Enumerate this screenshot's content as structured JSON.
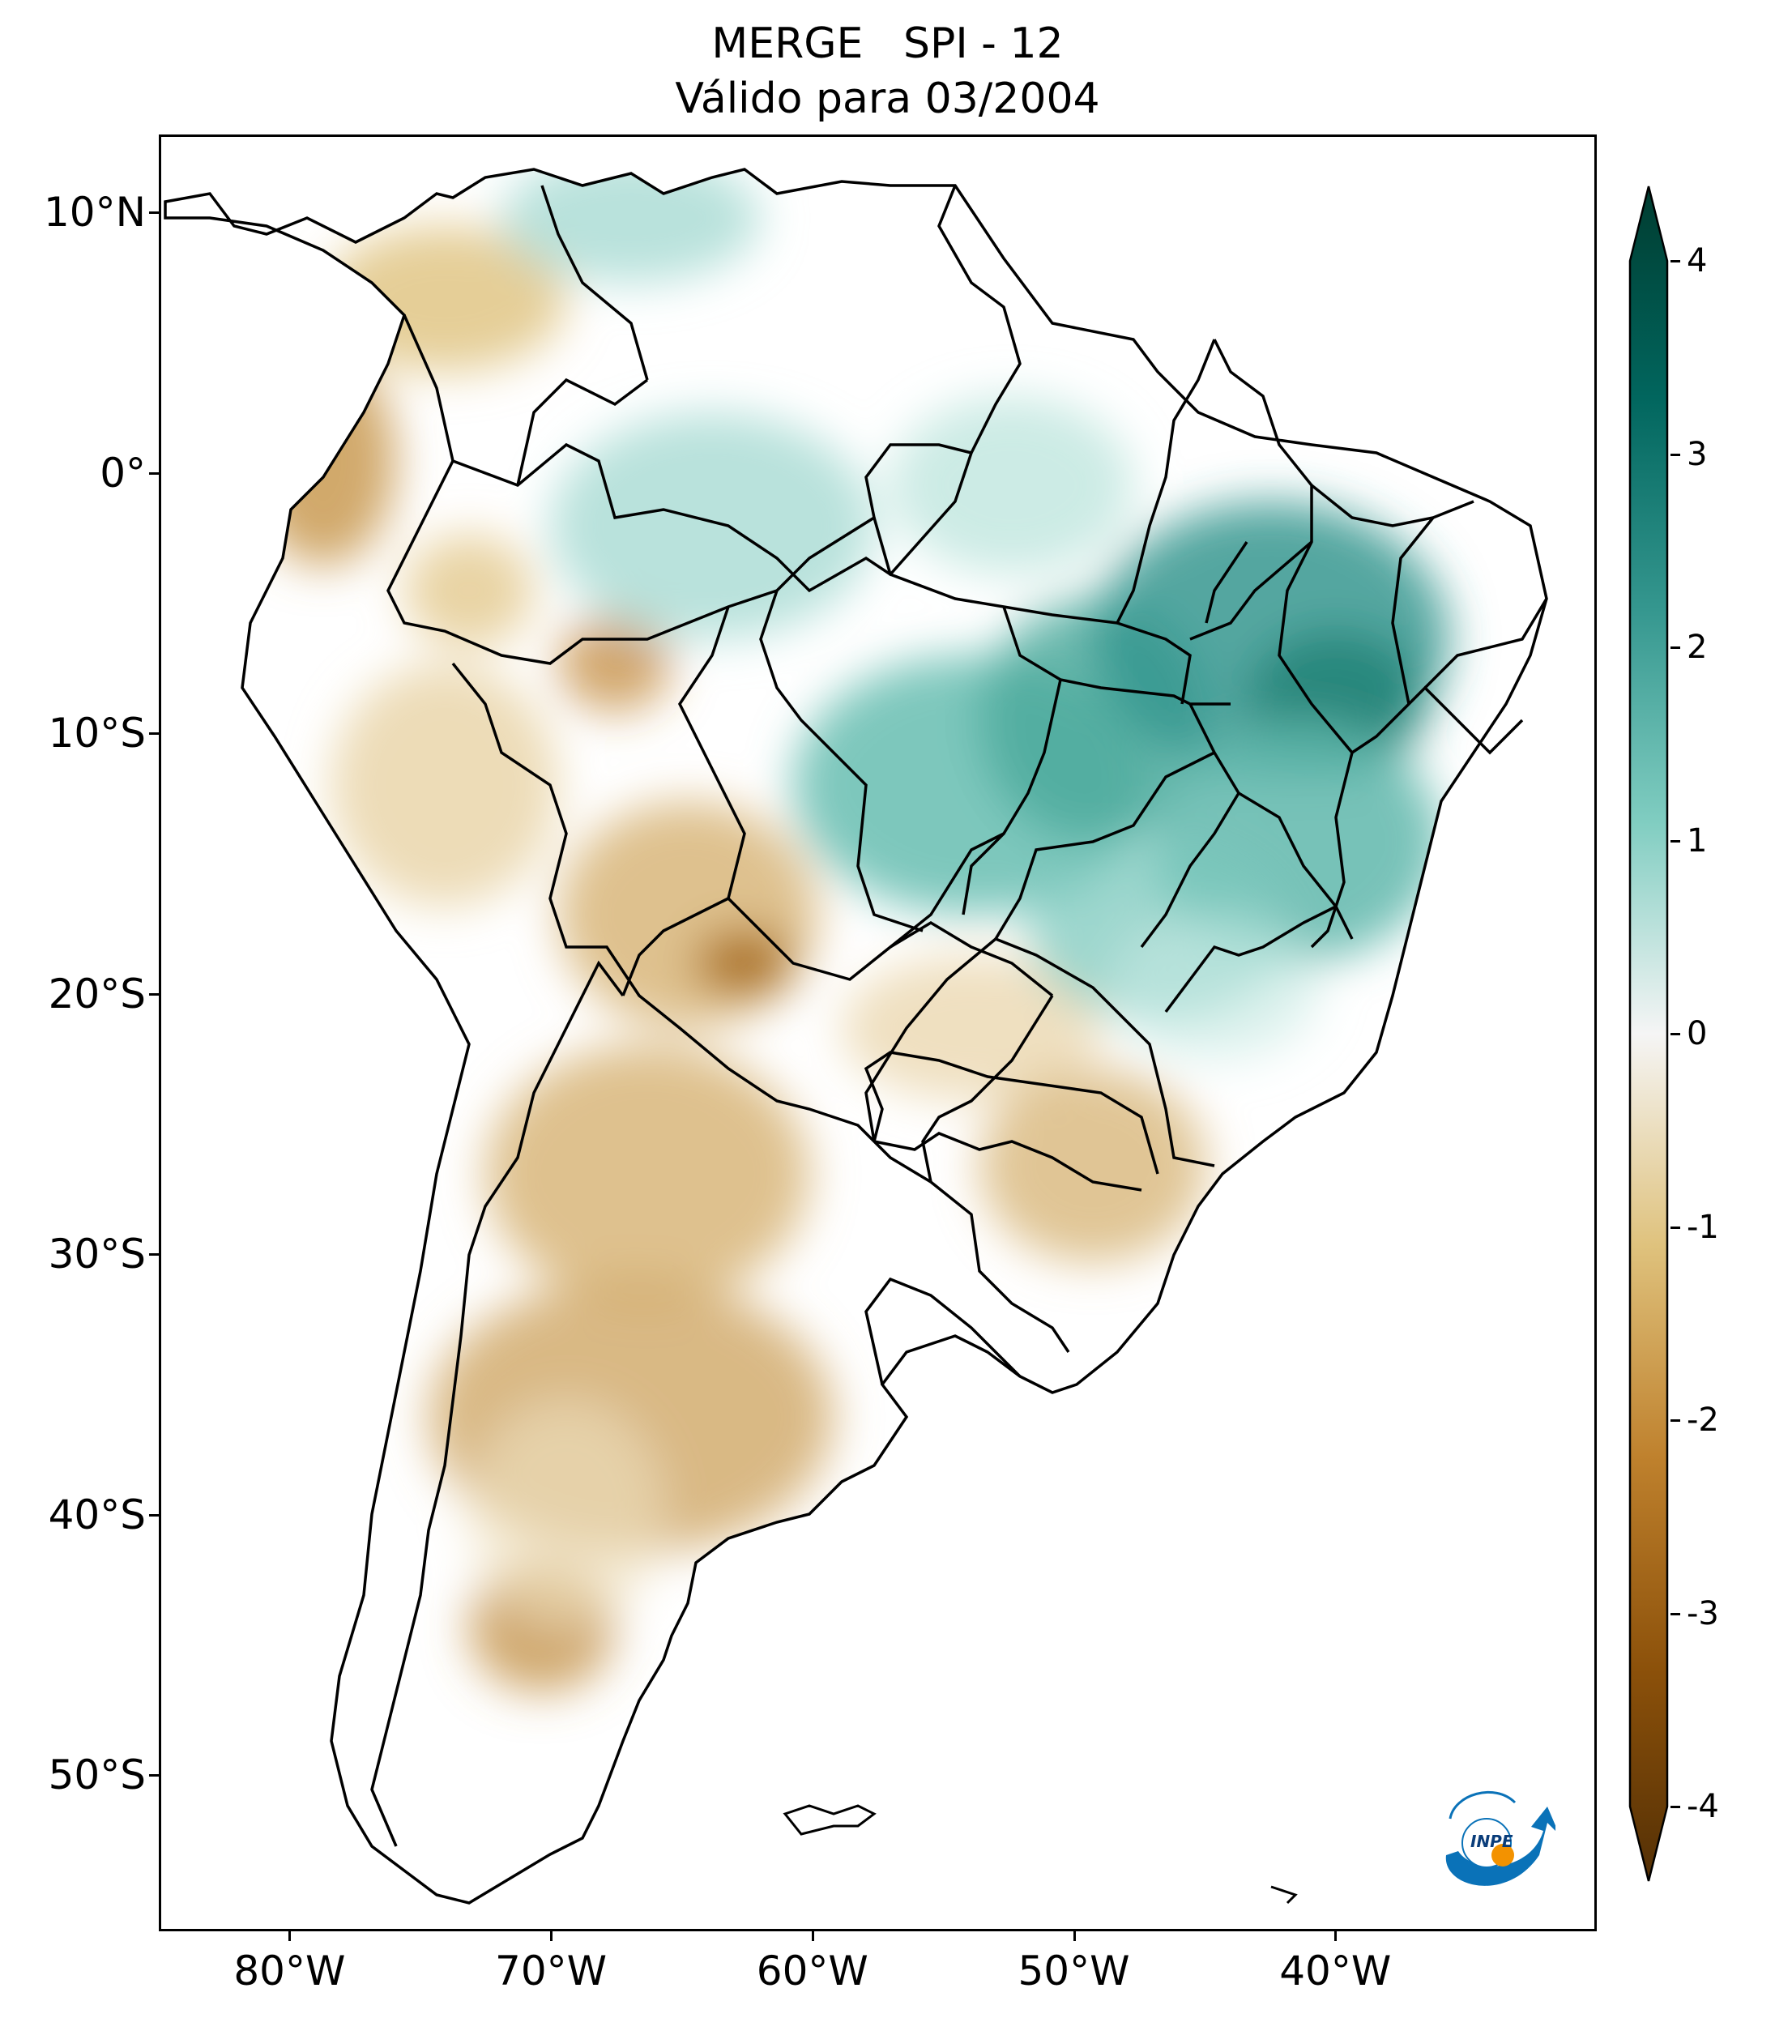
{
  "title": {
    "line1": "MERGE   SPI - 12",
    "line2": "Válido para 03/2004"
  },
  "map": {
    "region": "South America",
    "projection": "PlateCarree",
    "lon_range": [
      -85,
      -30
    ],
    "lat_range": [
      -56,
      13
    ],
    "lat_ticks": [
      {
        "value": 10,
        "label": "10°N"
      },
      {
        "value": 0,
        "label": "0°"
      },
      {
        "value": -10,
        "label": "10°S"
      },
      {
        "value": -20,
        "label": "20°S"
      },
      {
        "value": -30,
        "label": "30°S"
      },
      {
        "value": -40,
        "label": "40°S"
      },
      {
        "value": -50,
        "label": "50°S"
      }
    ],
    "lon_ticks": [
      {
        "value": -80,
        "label": "80°W"
      },
      {
        "value": -70,
        "label": "70°W"
      },
      {
        "value": -60,
        "label": "60°W"
      },
      {
        "value": -50,
        "label": "50°W"
      },
      {
        "value": -40,
        "label": "40°W"
      }
    ],
    "colormap": "BrBG",
    "colors": {
      "dry_extreme": "#543005",
      "dry": "#bf812d",
      "neutral": "#ffffff",
      "wet": "#35978f",
      "wet_extreme": "#003c30"
    }
  },
  "colorbar": {
    "range": [
      -4,
      4
    ],
    "extend": "both",
    "ticks": [
      {
        "value": 4,
        "label": "4"
      },
      {
        "value": 3,
        "label": "3"
      },
      {
        "value": 2,
        "label": "2"
      },
      {
        "value": 1,
        "label": "1"
      },
      {
        "value": 0,
        "label": "0"
      },
      {
        "value": -1,
        "label": "-1"
      },
      {
        "value": -2,
        "label": "-2"
      },
      {
        "value": -3,
        "label": "-3"
      },
      {
        "value": -4,
        "label": "-4"
      }
    ]
  },
  "logo": {
    "text": "INPE"
  }
}
